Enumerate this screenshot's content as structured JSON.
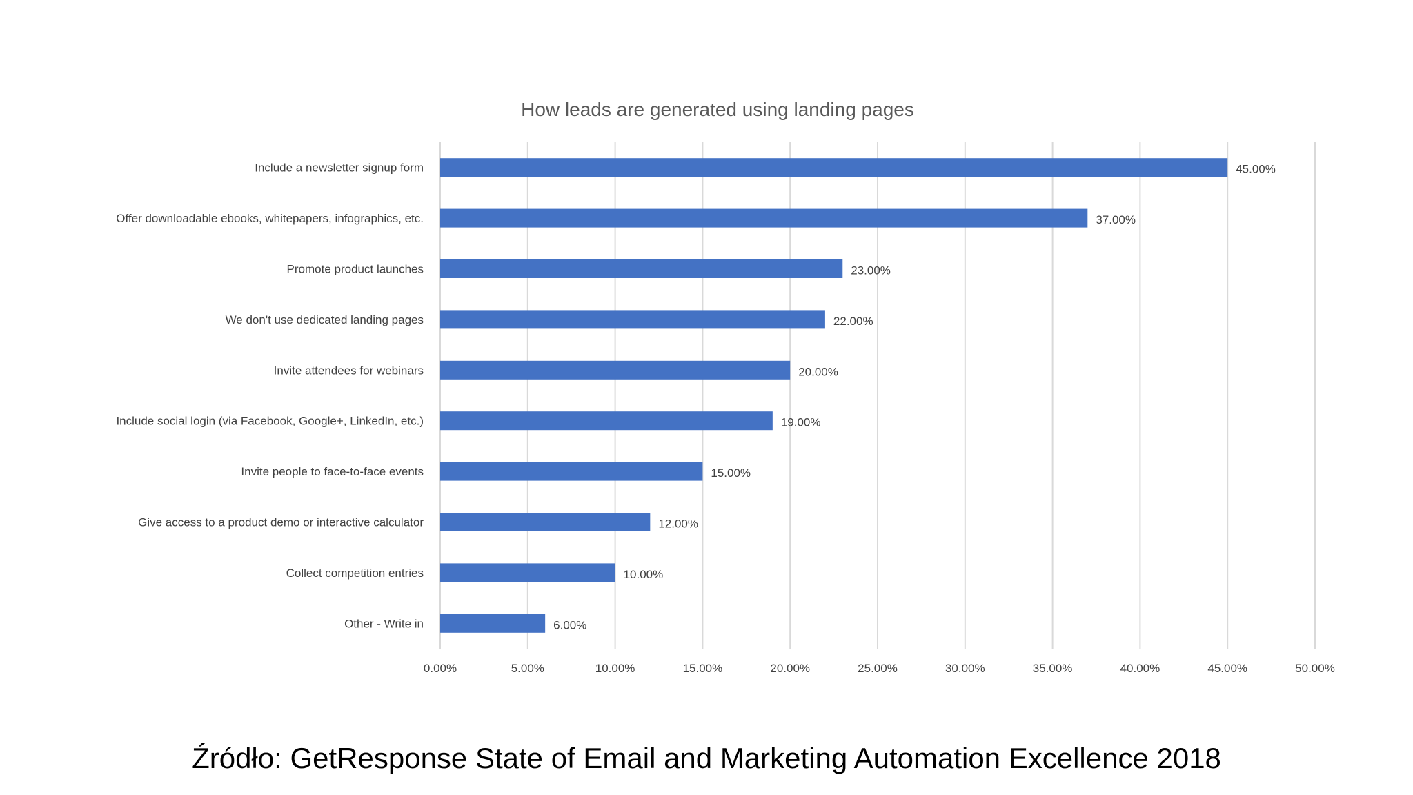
{
  "colors": {
    "bar": "#4472c4",
    "grid": "#d9d9d9",
    "text": "#404040",
    "title": "#595959"
  },
  "chart_data": {
    "type": "bar",
    "orientation": "horizontal",
    "title": "How leads are generated using landing pages",
    "categories": [
      "Include a newsletter signup form",
      "Offer downloadable ebooks, whitepapers, infographics, etc.",
      "Promote product launches",
      "We don't use dedicated landing pages",
      "Invite attendees for webinars",
      "Include social login (via Facebook, Google+, LinkedIn, etc.)",
      "Invite people to face-to-face events",
      "Give access to a product demo or interactive calculator",
      "Collect competition entries",
      "Other - Write in"
    ],
    "values": [
      45,
      37,
      23,
      22,
      20,
      19,
      15,
      12,
      10,
      6
    ],
    "data_labels": [
      "45.00%",
      "37.00%",
      "23.00%",
      "22.00%",
      "20.00%",
      "19.00%",
      "15.00%",
      "12.00%",
      "10.00%",
      "6.00%"
    ],
    "x_ticks": [
      "0.00%",
      "5.00%",
      "10.00%",
      "15.00%",
      "20.00%",
      "25.00%",
      "30.00%",
      "35.00%",
      "40.00%",
      "45.00%",
      "50.00%"
    ],
    "xlim": [
      0,
      50
    ],
    "xlabel": "",
    "ylabel": "",
    "grid": true,
    "legend": "none"
  },
  "footer": {
    "source": "Źródło: GetResponse State of Email and Marketing Automation Excellence 2018"
  }
}
